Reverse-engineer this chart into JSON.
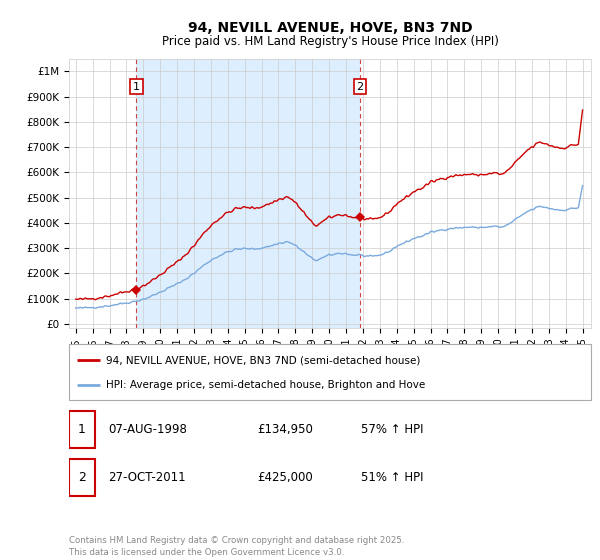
{
  "title": "94, NEVILL AVENUE, HOVE, BN3 7ND",
  "subtitle": "Price paid vs. HM Land Registry's House Price Index (HPI)",
  "background_color": "#ffffff",
  "plot_bg_color": "#ffffff",
  "grid_color": "#cccccc",
  "line1_color": "#cc0000",
  "line2_color": "#7aaadd",
  "shade_color": "#ddeeff",
  "legend_label1": "94, NEVILL AVENUE, HOVE, BN3 7ND (semi-detached house)",
  "legend_label2": "HPI: Average price, semi-detached house, Brighton and Hove",
  "sale1_date_label": "07-AUG-1998",
  "sale1_price_label": "£134,950",
  "sale1_hpi_label": "57% ↑ HPI",
  "sale1_x": 1998.583,
  "sale1_price": 134950,
  "sale2_date_label": "27-OCT-2011",
  "sale2_price_label": "£425,000",
  "sale2_hpi_label": "51% ↑ HPI",
  "sale2_x": 2011.833,
  "sale2_price": 425000,
  "footer": "Contains HM Land Registry data © Crown copyright and database right 2025.\nThis data is licensed under the Open Government Licence v3.0.",
  "yticks": [
    0,
    100000,
    200000,
    300000,
    400000,
    500000,
    600000,
    700000,
    800000,
    900000,
    1000000
  ],
  "ytick_labels": [
    "£0",
    "£100K",
    "£200K",
    "£300K",
    "£400K",
    "£500K",
    "£600K",
    "£700K",
    "£800K",
    "£900K",
    "£1M"
  ],
  "xtick_years": [
    1995,
    1996,
    1997,
    1998,
    1999,
    2000,
    2001,
    2002,
    2003,
    2004,
    2005,
    2006,
    2007,
    2008,
    2009,
    2010,
    2011,
    2012,
    2013,
    2014,
    2015,
    2016,
    2017,
    2018,
    2019,
    2020,
    2021,
    2022,
    2023,
    2024,
    2025
  ],
  "price_years": [
    1998.583,
    2011.833
  ],
  "price_values": [
    134950,
    425000
  ]
}
